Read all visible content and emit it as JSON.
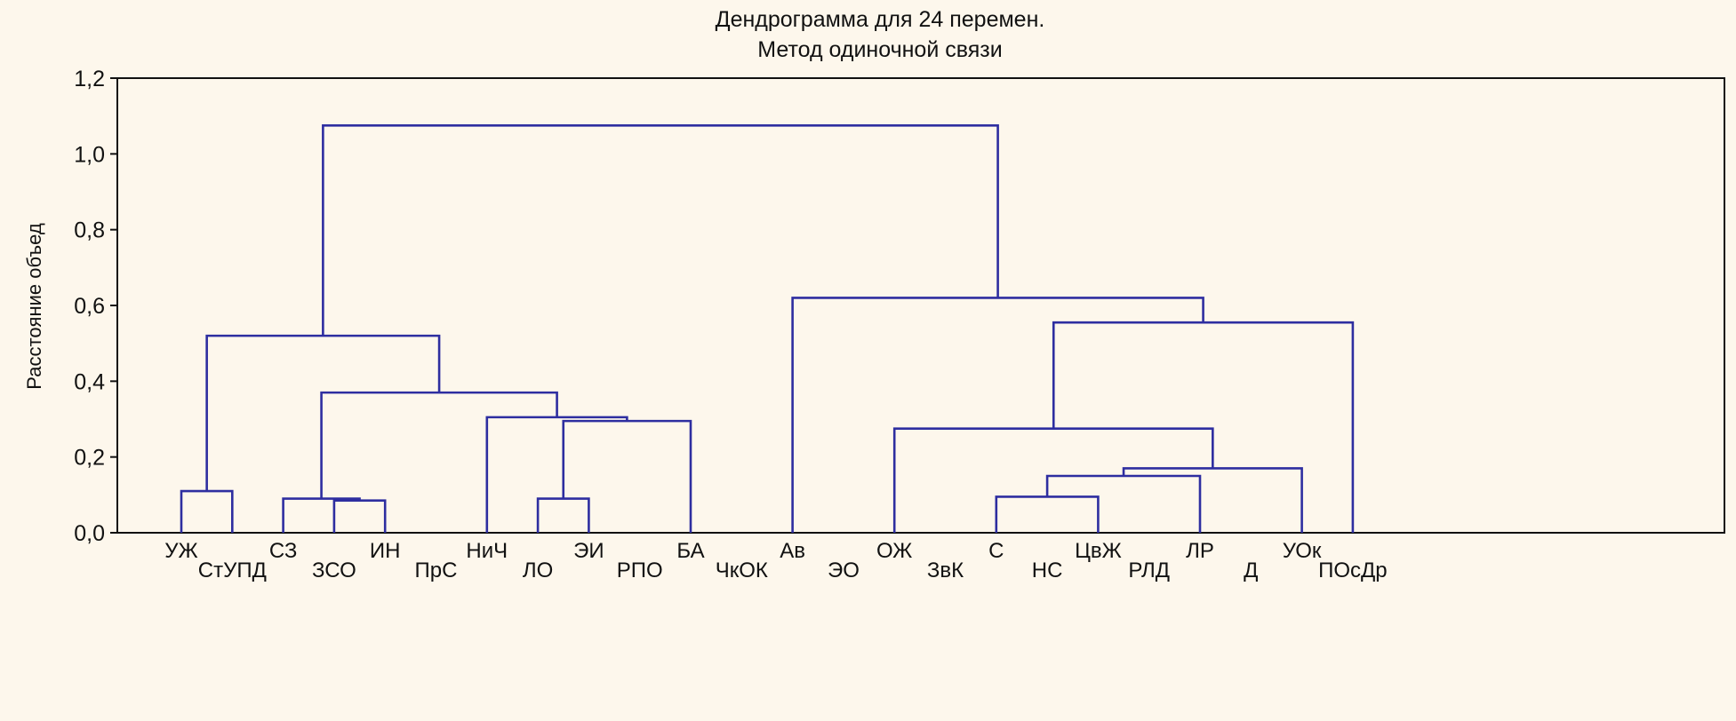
{
  "chart_data": {
    "type": "dendrogram",
    "title": "Дендрограмма для 24  перемен.",
    "subtitle": "Метод одиночной связи",
    "ylabel": "Расстояние объед",
    "ylim": [
      0,
      1.2
    ],
    "yticks": [
      "0,0",
      "0,2",
      "0,4",
      "0,6",
      "0,8",
      "1,0",
      "1,2"
    ],
    "line_color": "#2e2ea0",
    "leaves": [
      "УЖ",
      "СтУПД",
      "СЗ",
      "ЗСО",
      "ИН",
      "ПрС",
      "НиЧ",
      "ЛО",
      "ЭИ",
      "РПО",
      "БА",
      "ЧкОК",
      "Ав",
      "ЭО",
      "ОЖ",
      "ЗвК",
      "С",
      "НС",
      "ЦвЖ",
      "РЛД",
      "ЛР",
      "Д",
      "УОк",
      "ПОсДр"
    ],
    "merges": [
      {
        "a": "УЖ",
        "b": "СтУПД",
        "height": 0.11
      },
      {
        "a": "ЗСО",
        "b": "ИН",
        "height": 0.085
      },
      {
        "a": "СЗ",
        "b": "ЗСО+ИН",
        "height": 0.09
      },
      {
        "a": "ЛО",
        "b": "ЭИ",
        "height": 0.09
      },
      {
        "a": "ЛО+ЭИ",
        "b": "БА",
        "height": 0.295
      },
      {
        "a": "НиЧ",
        "b": "ЛО+ЭИ+БА",
        "height": 0.305
      },
      {
        "a": "СЗ+ЗСО+ИН",
        "b": "НиЧ+ЛО+ЭИ+БА",
        "height": 0.37
      },
      {
        "a": "УЖ+СтУПД",
        "b": "СЗ+...+БА",
        "height": 0.52
      },
      {
        "a": "С",
        "b": "ЦвЖ",
        "height": 0.095
      },
      {
        "a": "С+ЦвЖ",
        "b": "ЛР",
        "height": 0.15
      },
      {
        "a": "С+ЦвЖ+ЛР",
        "b": "УОк",
        "height": 0.17
      },
      {
        "a": "ОЖ",
        "b": "С+ЦвЖ+ЛР+УОк",
        "height": 0.275
      },
      {
        "a": "ОЖ+...+УОк",
        "b": "ПОсДр",
        "height": 0.555
      },
      {
        "a": "Ав",
        "b": "ОЖ+...+ПОсДр",
        "height": 0.62
      },
      {
        "a": "УЖ+...+БА",
        "b": "Ав+...+ПОсДр",
        "height": 1.075
      }
    ]
  }
}
